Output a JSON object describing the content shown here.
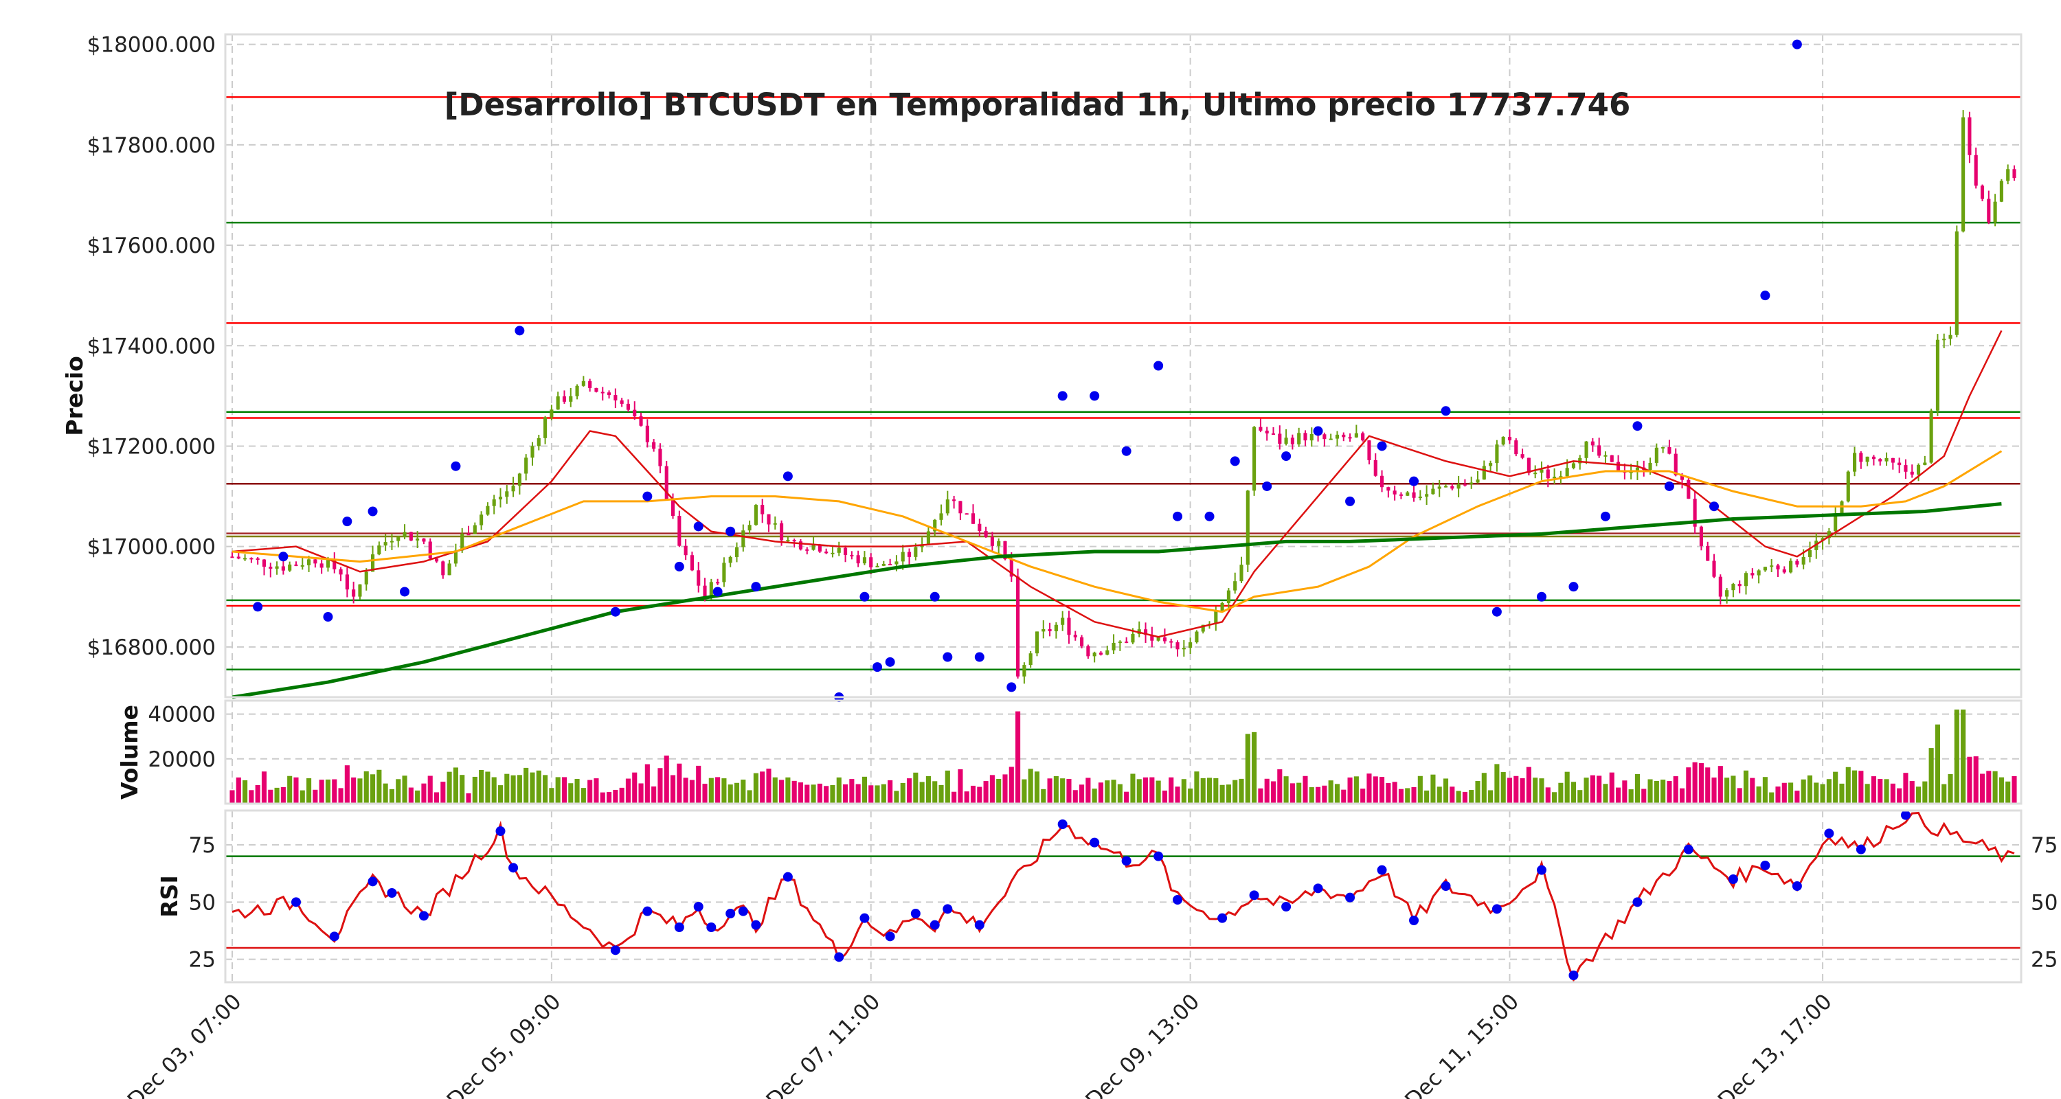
{
  "chart_data": {
    "title": "[Desarrollo] BTCUSDT en Temporalidad 1h, Ultimo precio 17737.746",
    "x_tick_labels": [
      "Dec 03, 07:00",
      "Dec 05, 09:00",
      "Dec 07, 11:00",
      "Dec 09, 13:00",
      "Dec 11, 15:00",
      "Dec 13, 17:00"
    ],
    "colors": {
      "up": "#6aa10f",
      "down": "#e6006e",
      "ema_fast": "#dd1111",
      "ema_mid": "#ffa500",
      "ema_slow": "#007700",
      "markers": "#0000ee",
      "rsi": "#dd1111",
      "grid": "#cccccc",
      "frame": "#dddddd"
    },
    "price_panel": {
      "type": "candlestick",
      "ylabel": "Precio",
      "ylim": [
        16700,
        18020
      ],
      "y_ticks": [
        16800,
        17000,
        17200,
        17400,
        17600,
        17800,
        18000
      ],
      "y_tick_labels": [
        "$16800.000",
        "$17000.000",
        "$17200.000",
        "$17400.000",
        "$17600.000",
        "$17800.000",
        "$18000.000"
      ],
      "close_anchors": [
        [
          0,
          16980
        ],
        [
          8,
          16960
        ],
        [
          13,
          16975
        ],
        [
          17,
          16950
        ],
        [
          19,
          16890
        ],
        [
          22,
          16990
        ],
        [
          26,
          17030
        ],
        [
          30,
          17010
        ],
        [
          33,
          16940
        ],
        [
          36,
          17020
        ],
        [
          40,
          17080
        ],
        [
          44,
          17120
        ],
        [
          50,
          17280
        ],
        [
          55,
          17320
        ],
        [
          60,
          17300
        ],
        [
          66,
          17200
        ],
        [
          70,
          17000
        ],
        [
          74,
          16900
        ],
        [
          78,
          16980
        ],
        [
          82,
          17080
        ],
        [
          87,
          17010
        ],
        [
          92,
          17000
        ],
        [
          97,
          16980
        ],
        [
          102,
          16960
        ],
        [
          107,
          16990
        ],
        [
          112,
          17100
        ],
        [
          116,
          17050
        ],
        [
          120,
          17000
        ],
        [
          122,
          16940
        ],
        [
          123,
          16730
        ],
        [
          126,
          16820
        ],
        [
          130,
          16850
        ],
        [
          134,
          16790
        ],
        [
          138,
          16800
        ],
        [
          142,
          16830
        ],
        [
          146,
          16800
        ],
        [
          150,
          16810
        ],
        [
          154,
          16870
        ],
        [
          158,
          16960
        ],
        [
          160,
          17240
        ],
        [
          164,
          17210
        ],
        [
          168,
          17220
        ],
        [
          172,
          17210
        ],
        [
          176,
          17220
        ],
        [
          177,
          17200
        ],
        [
          179,
          17130
        ],
        [
          182,
          17110
        ],
        [
          186,
          17100
        ],
        [
          190,
          17120
        ],
        [
          195,
          17130
        ],
        [
          199,
          17220
        ],
        [
          203,
          17150
        ],
        [
          207,
          17140
        ],
        [
          212,
          17200
        ],
        [
          216,
          17160
        ],
        [
          220,
          17150
        ],
        [
          224,
          17200
        ],
        [
          228,
          17100
        ],
        [
          230,
          16990
        ],
        [
          233,
          16900
        ],
        [
          236,
          16930
        ],
        [
          240,
          16960
        ],
        [
          244,
          16960
        ],
        [
          247,
          17000
        ],
        [
          250,
          17020
        ],
        [
          254,
          17180
        ],
        [
          258,
          17170
        ],
        [
          262,
          17150
        ],
        [
          265,
          17160
        ],
        [
          267,
          17400
        ],
        [
          269,
          17420
        ],
        [
          271,
          17850
        ],
        [
          273,
          17730
        ],
        [
          275,
          17650
        ],
        [
          277,
          17740
        ]
      ],
      "ema_fast": [
        [
          0,
          16990
        ],
        [
          10,
          17000
        ],
        [
          20,
          16950
        ],
        [
          30,
          16970
        ],
        [
          40,
          17010
        ],
        [
          50,
          17130
        ],
        [
          56,
          17230
        ],
        [
          60,
          17220
        ],
        [
          65,
          17150
        ],
        [
          70,
          17080
        ],
        [
          75,
          17030
        ],
        [
          85,
          17010
        ],
        [
          95,
          17000
        ],
        [
          105,
          17000
        ],
        [
          115,
          17010
        ],
        [
          125,
          16920
        ],
        [
          135,
          16850
        ],
        [
          145,
          16820
        ],
        [
          155,
          16850
        ],
        [
          160,
          16950
        ],
        [
          170,
          17100
        ],
        [
          178,
          17220
        ],
        [
          190,
          17170
        ],
        [
          200,
          17140
        ],
        [
          210,
          17170
        ],
        [
          220,
          17160
        ],
        [
          228,
          17120
        ],
        [
          235,
          17050
        ],
        [
          240,
          17000
        ],
        [
          245,
          16980
        ],
        [
          250,
          17020
        ],
        [
          260,
          17100
        ],
        [
          268,
          17180
        ],
        [
          272,
          17300
        ],
        [
          277,
          17430
        ]
      ],
      "ema_mid": [
        [
          0,
          16990
        ],
        [
          20,
          16970
        ],
        [
          35,
          16990
        ],
        [
          45,
          17040
        ],
        [
          55,
          17090
        ],
        [
          65,
          17090
        ],
        [
          75,
          17100
        ],
        [
          85,
          17100
        ],
        [
          95,
          17090
        ],
        [
          105,
          17060
        ],
        [
          115,
          17010
        ],
        [
          125,
          16960
        ],
        [
          135,
          16920
        ],
        [
          145,
          16890
        ],
        [
          155,
          16870
        ],
        [
          160,
          16900
        ],
        [
          170,
          16920
        ],
        [
          178,
          16960
        ],
        [
          185,
          17020
        ],
        [
          195,
          17080
        ],
        [
          205,
          17130
        ],
        [
          215,
          17150
        ],
        [
          225,
          17150
        ],
        [
          235,
          17110
        ],
        [
          245,
          17080
        ],
        [
          255,
          17080
        ],
        [
          262,
          17090
        ],
        [
          268,
          17120
        ],
        [
          277,
          17190
        ]
      ],
      "ema_slow": [
        [
          0,
          16700
        ],
        [
          15,
          16730
        ],
        [
          30,
          16770
        ],
        [
          45,
          16820
        ],
        [
          60,
          16870
        ],
        [
          75,
          16900
        ],
        [
          90,
          16930
        ],
        [
          105,
          16960
        ],
        [
          120,
          16980
        ],
        [
          135,
          16990
        ],
        [
          145,
          16990
        ],
        [
          155,
          17000
        ],
        [
          165,
          17010
        ],
        [
          175,
          17010
        ],
        [
          185,
          17015
        ],
        [
          195,
          17020
        ],
        [
          205,
          17025
        ],
        [
          215,
          17035
        ],
        [
          225,
          17045
        ],
        [
          235,
          17055
        ],
        [
          245,
          17060
        ],
        [
          255,
          17065
        ],
        [
          265,
          17070
        ],
        [
          277,
          17085
        ]
      ],
      "horizontal_levels": [
        {
          "y": 17895,
          "color": "red"
        },
        {
          "y": 17645,
          "color": "green"
        },
        {
          "y": 17445,
          "color": "red"
        },
        {
          "y": 17268,
          "color": "green"
        },
        {
          "y": 17256,
          "color": "red"
        },
        {
          "y": 17125,
          "color": "darkred"
        },
        {
          "y": 17026,
          "color": "brown"
        },
        {
          "y": 17020,
          "color": "olive"
        },
        {
          "y": 16893,
          "color": "green"
        },
        {
          "y": 16882,
          "color": "red"
        },
        {
          "y": 16755,
          "color": "green"
        }
      ],
      "markers": [
        [
          4,
          16880
        ],
        [
          8,
          16980
        ],
        [
          15,
          16860
        ],
        [
          18,
          17050
        ],
        [
          22,
          17070
        ],
        [
          27,
          16910
        ],
        [
          35,
          17160
        ],
        [
          45,
          17430
        ],
        [
          60,
          16870
        ],
        [
          65,
          17100
        ],
        [
          70,
          16960
        ],
        [
          73,
          17040
        ],
        [
          76,
          16910
        ],
        [
          78,
          17030
        ],
        [
          82,
          16920
        ],
        [
          87,
          17140
        ],
        [
          95,
          16700
        ],
        [
          99,
          16900
        ],
        [
          101,
          16760
        ],
        [
          103,
          16770
        ],
        [
          110,
          16900
        ],
        [
          112,
          16780
        ],
        [
          117,
          16780
        ],
        [
          122,
          16720
        ],
        [
          130,
          17300
        ],
        [
          135,
          17300
        ],
        [
          140,
          17190
        ],
        [
          145,
          17360
        ],
        [
          148,
          17060
        ],
        [
          153,
          17060
        ],
        [
          157,
          17170
        ],
        [
          162,
          17120
        ],
        [
          165,
          17180
        ],
        [
          170,
          17230
        ],
        [
          175,
          17090
        ],
        [
          180,
          17200
        ],
        [
          185,
          17130
        ],
        [
          190,
          17270
        ],
        [
          198,
          16870
        ],
        [
          205,
          16900
        ],
        [
          210,
          16920
        ],
        [
          215,
          17060
        ],
        [
          220,
          17240
        ],
        [
          225,
          17120
        ],
        [
          232,
          17080
        ],
        [
          240,
          17500
        ],
        [
          245,
          18000
        ]
      ]
    },
    "volume_panel": {
      "ylabel": "Volume",
      "ylim": [
        0,
        46000
      ],
      "y_ticks": [
        20000,
        40000
      ],
      "y_tick_labels": [
        "20000",
        "40000"
      ]
    },
    "rsi_panel": {
      "ylabel": "RSI",
      "ylim": [
        15,
        90
      ],
      "y_ticks": [
        25,
        50,
        75
      ],
      "y_tick_labels": [
        "25",
        "50",
        "75"
      ],
      "upper_level": 70,
      "lower_level": 30,
      "markers": [
        [
          10,
          50
        ],
        [
          16,
          35
        ],
        [
          22,
          59
        ],
        [
          25,
          54
        ],
        [
          30,
          44
        ],
        [
          42,
          81
        ],
        [
          44,
          65
        ],
        [
          60,
          29
        ],
        [
          65,
          46
        ],
        [
          70,
          39
        ],
        [
          73,
          48
        ],
        [
          75,
          39
        ],
        [
          78,
          45
        ],
        [
          80,
          46
        ],
        [
          82,
          40
        ],
        [
          87,
          61
        ],
        [
          95,
          26
        ],
        [
          99,
          43
        ],
        [
          103,
          35
        ],
        [
          107,
          45
        ],
        [
          110,
          40
        ],
        [
          112,
          47
        ],
        [
          117,
          40
        ],
        [
          130,
          84
        ],
        [
          135,
          76
        ],
        [
          140,
          68
        ],
        [
          145,
          70
        ],
        [
          148,
          51
        ],
        [
          155,
          43
        ],
        [
          160,
          53
        ],
        [
          165,
          48
        ],
        [
          170,
          56
        ],
        [
          175,
          52
        ],
        [
          180,
          64
        ],
        [
          185,
          42
        ],
        [
          190,
          57
        ],
        [
          198,
          47
        ],
        [
          205,
          64
        ],
        [
          210,
          18
        ],
        [
          220,
          50
        ],
        [
          228,
          73
        ],
        [
          235,
          60
        ],
        [
          240,
          66
        ],
        [
          245,
          57
        ],
        [
          250,
          80
        ],
        [
          255,
          73
        ],
        [
          262,
          88
        ]
      ]
    }
  }
}
